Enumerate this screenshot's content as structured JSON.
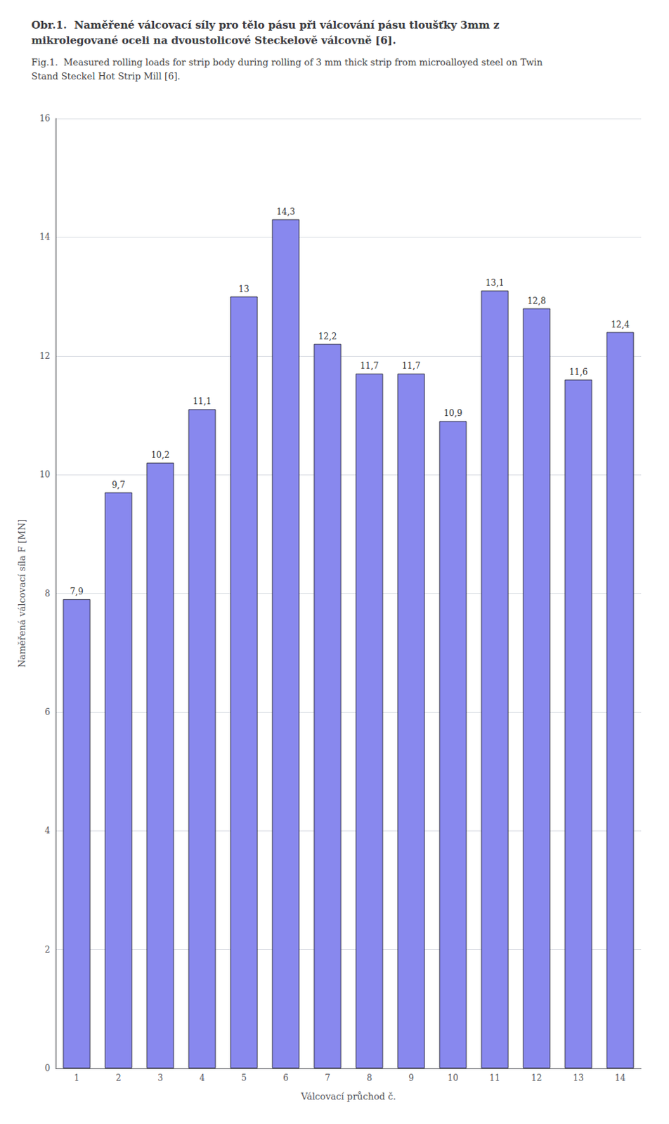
{
  "chart_data": {
    "type": "bar",
    "title": "Obr.1.  Naměřené válcovací síly pro tělo pásu při válcování pásu tloušťky 3mm z mikrolegované oceli na dvoustolicové Steckelově válcovně [6].",
    "subtitle": "Fig.1.  Measured rolling loads for strip body during rolling of 3 mm thick strip from microalloyed steel on Twin Stand Steckel Hot Strip Mill [6].",
    "xlabel": "Válcovací průchod č.",
    "ylabel": "Naměřená válcovací síla F [MN]",
    "categories": [
      1,
      2,
      3,
      4,
      5,
      6,
      7,
      8,
      9,
      10,
      11,
      12,
      13,
      14
    ],
    "values": [
      7.9,
      9.7,
      10.2,
      11.1,
      13.0,
      14.3,
      12.2,
      11.7,
      11.7,
      10.9,
      13.1,
      12.8,
      11.6,
      12.4
    ],
    "value_labels": [
      "7,9",
      "9,7",
      "10,2",
      "11,1",
      "13",
      "14,3",
      "12,2",
      "11,7",
      "11,7",
      "10,9",
      "13,1",
      "12,8",
      "11,6",
      "12,4"
    ],
    "data_labels": true,
    "color": "#8888ee",
    "ylim": [
      0,
      16
    ],
    "yticks": [
      0,
      2,
      4,
      6,
      8,
      10,
      12,
      14,
      16
    ],
    "grid": true
  }
}
